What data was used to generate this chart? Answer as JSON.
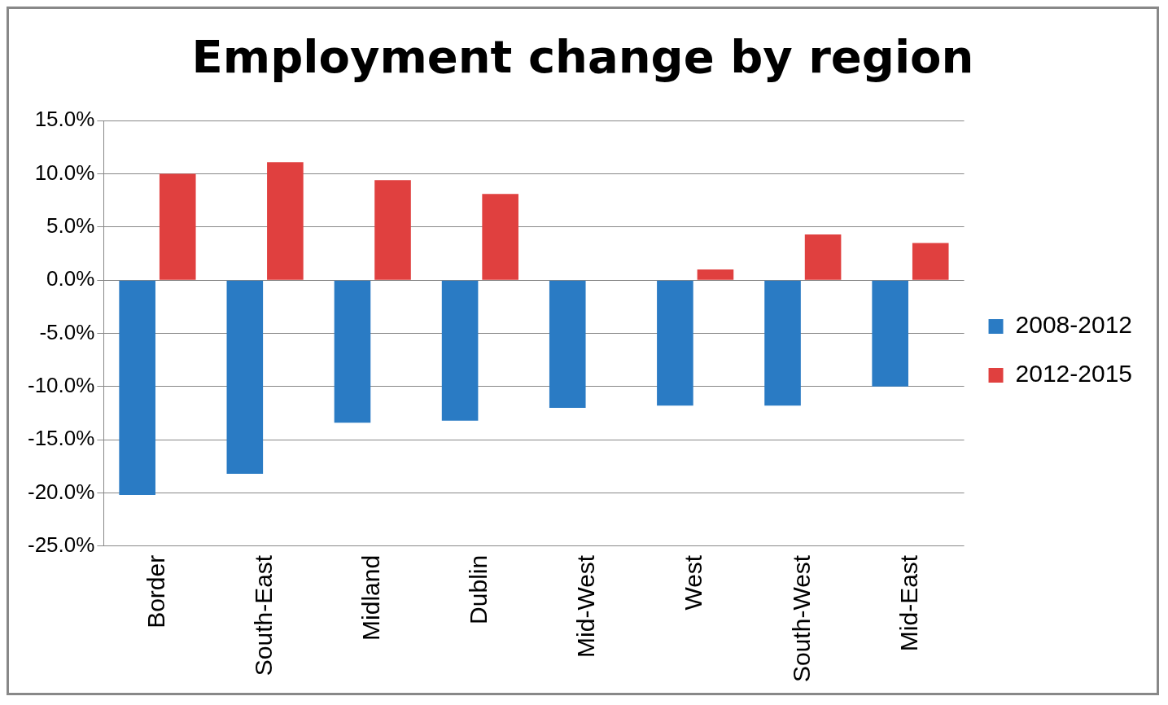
{
  "chart_data": {
    "type": "bar",
    "title": "Employment change by region",
    "categories": [
      "Border",
      "South-East",
      "Midland",
      "Dublin",
      "Mid-West",
      "West",
      "South-West",
      "Mid-East"
    ],
    "series": [
      {
        "name": "2008-2012",
        "color": "#2a7bc4",
        "values": [
          -20.2,
          -18.2,
          -13.4,
          -13.2,
          -12.0,
          -11.8,
          -11.8,
          -10.0
        ]
      },
      {
        "name": "2012-2015",
        "color": "#e0403f",
        "values": [
          10.0,
          11.1,
          9.4,
          8.1,
          0.0,
          1.0,
          4.3,
          3.5
        ]
      }
    ],
    "ylim": [
      -25,
      15
    ],
    "yticks": [
      {
        "value": 15,
        "label": "15.0%"
      },
      {
        "value": 10,
        "label": "10.0%"
      },
      {
        "value": 5,
        "label": "5.0%"
      },
      {
        "value": 0,
        "label": "0.0%"
      },
      {
        "value": -5,
        "label": "-5.0%"
      },
      {
        "value": -10,
        "label": "-10.0%"
      },
      {
        "value": -15,
        "label": "-15.0%"
      },
      {
        "value": -20,
        "label": "-20.0%"
      },
      {
        "value": -25,
        "label": "-25.0%"
      }
    ],
    "grid": "y",
    "legend": "right"
  }
}
